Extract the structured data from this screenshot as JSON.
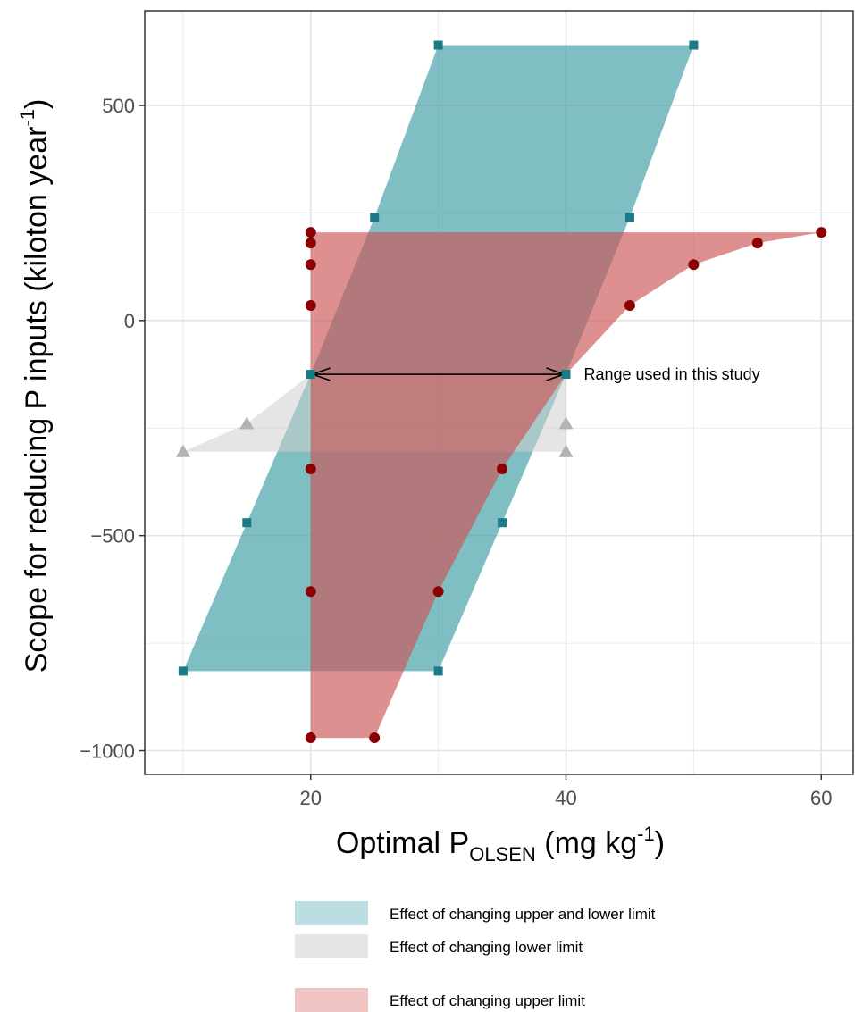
{
  "chart_data": {
    "type": "area",
    "title": "",
    "xlabel": {
      "main": "Optimal P",
      "subscript": "OLSEN",
      "unit": " (mg kg",
      "superscript": "-1",
      "close": ")"
    },
    "ylabel": {
      "main": "Scope for reducing P inputs (kiloton year",
      "superscript": "-1",
      "close": ")"
    },
    "xlim": [
      7,
      62.5
    ],
    "ylim": [
      -1055,
      720
    ],
    "x_ticks": [
      20,
      40,
      60
    ],
    "x_tick_labels": [
      "20",
      "40",
      "60"
    ],
    "y_ticks": [
      500,
      0,
      -500,
      -1000
    ],
    "y_tick_labels": [
      "500",
      "0",
      "−500",
      "−1000"
    ],
    "grid": true,
    "legend_position": "bottom",
    "series": [
      {
        "name": "Effect of changing upper and lower limit",
        "color": "#3a9ba2",
        "fill_opacity": 0.65,
        "marker": "square",
        "marker_color": "#1b7a88",
        "polygon": [
          [
            10,
            -815
          ],
          [
            20,
            -125
          ],
          [
            25,
            240
          ],
          [
            30,
            640
          ],
          [
            50,
            640
          ],
          [
            45,
            240
          ],
          [
            40,
            -125
          ],
          [
            35,
            -470
          ],
          [
            30,
            -815
          ]
        ],
        "points": [
          [
            10,
            -815
          ],
          [
            15,
            -470
          ],
          [
            20,
            -125
          ],
          [
            25,
            240
          ],
          [
            30,
            640
          ],
          [
            50,
            640
          ],
          [
            45,
            240
          ],
          [
            40,
            -125
          ],
          [
            35,
            -470
          ],
          [
            30,
            -815
          ]
        ]
      },
      {
        "name": "Effect of changing lower limit",
        "color": "#d0d0d0",
        "fill_opacity": 0.55,
        "marker": "triangle",
        "marker_color": "#b3b3b3",
        "polygon": [
          [
            10,
            -305
          ],
          [
            15,
            -240
          ],
          [
            20,
            -125
          ],
          [
            40,
            -125
          ],
          [
            40,
            -305
          ]
        ],
        "points": [
          [
            10,
            -305
          ],
          [
            15,
            -240
          ],
          [
            40,
            -240
          ],
          [
            40,
            -305
          ]
        ]
      },
      {
        "name": "Effect of changing upper limit",
        "color": "#cd5555",
        "fill_opacity": 0.65,
        "marker": "circle",
        "marker_color": "#8b0000",
        "polygon": [
          [
            20,
            205
          ],
          [
            60,
            205
          ],
          [
            55,
            180
          ],
          [
            50,
            130
          ],
          [
            45,
            35
          ],
          [
            40,
            -125
          ],
          [
            35,
            -345
          ],
          [
            30,
            -630
          ],
          [
            25,
            -970
          ],
          [
            20,
            -970
          ]
        ],
        "points": [
          [
            20,
            205
          ],
          [
            20,
            180
          ],
          [
            20,
            130
          ],
          [
            20,
            35
          ],
          [
            20,
            -345
          ],
          [
            20,
            -630
          ],
          [
            20,
            -970
          ],
          [
            25,
            -970
          ],
          [
            30,
            -630
          ],
          [
            35,
            -345
          ],
          [
            45,
            35
          ],
          [
            50,
            130
          ],
          [
            55,
            180
          ],
          [
            60,
            205
          ]
        ]
      }
    ],
    "annotation": {
      "text": "Range used in this study",
      "arrow_from": [
        20,
        -125
      ],
      "arrow_to": [
        40,
        -125
      ]
    }
  }
}
